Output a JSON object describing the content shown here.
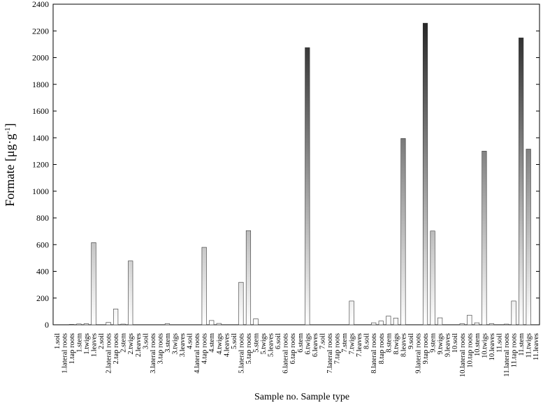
{
  "chart_data": {
    "type": "bar",
    "title": "",
    "xlabel": "Sample no. Sample type",
    "ylabel_main": "Formate [μg·g",
    "ylabel_sup": "-1",
    "ylabel_end": "]",
    "ylim": [
      0,
      2400
    ],
    "yticks": [
      "0",
      "200",
      "400",
      "600",
      "800",
      "1000",
      "1200",
      "1400",
      "1600",
      "1800",
      "2000",
      "2200",
      "2400"
    ],
    "categories": [
      "1.soil",
      "1.lateral roots",
      "1.tap roots",
      "1.stem",
      "1.twigs",
      "1.leaves",
      "2.soil",
      "2.lateral roots",
      "2.tap roots",
      "2.stem",
      "2.twigs",
      "2.leaves",
      "3.soil",
      "3.lateral roots",
      "3.tap roots",
      "3.stem",
      "3.twigs",
      "3.leaves",
      "4.soil",
      "4.lateral roots",
      "4.tap roots",
      "4.stem",
      "4.twigs",
      "4.leaves",
      "5.soil",
      "5.lateral roots",
      "5.tap roots",
      "5.stem",
      "5.twigs",
      "5.leaves",
      "6.soil",
      "6.lateral roots",
      "6.tap roots",
      "6.stem",
      "6.twigs",
      "6.leaves",
      "7.soil",
      "7.lateral roots",
      "7.tap roots",
      "7.stem",
      "7.twigs",
      "7.leaves",
      "8.soil",
      "8.lateral roots",
      "8.tap roots",
      "8.stem",
      "8.twigs",
      "8.leaves",
      "9.soil",
      "9.lateral roots",
      "9.tap roots",
      "9.stem",
      "9.twigs",
      "9.leaves",
      "10.soil",
      "10.lateral roots",
      "10.tap roots",
      "10.stem",
      "10.twigs",
      "10.leaves",
      "11.soil",
      "11.lateral roots",
      "11.tap roots",
      "11.stem",
      "11.twigs",
      "11.leaves"
    ],
    "values": [
      0,
      0,
      3,
      6,
      8,
      615,
      0,
      18,
      118,
      5,
      478,
      0,
      0,
      0,
      0,
      8,
      0,
      0,
      0,
      0,
      580,
      32,
      10,
      0,
      0,
      318,
      705,
      45,
      0,
      0,
      0,
      0,
      0,
      0,
      2075,
      0,
      0,
      0,
      0,
      0,
      178,
      0,
      0,
      15,
      28,
      65,
      50,
      1395,
      0,
      0,
      2258,
      702,
      52,
      0,
      0,
      8,
      72,
      15,
      1300,
      8,
      0,
      5,
      178,
      2148,
      1315,
      0
    ],
    "grid": false,
    "legend": "none"
  }
}
